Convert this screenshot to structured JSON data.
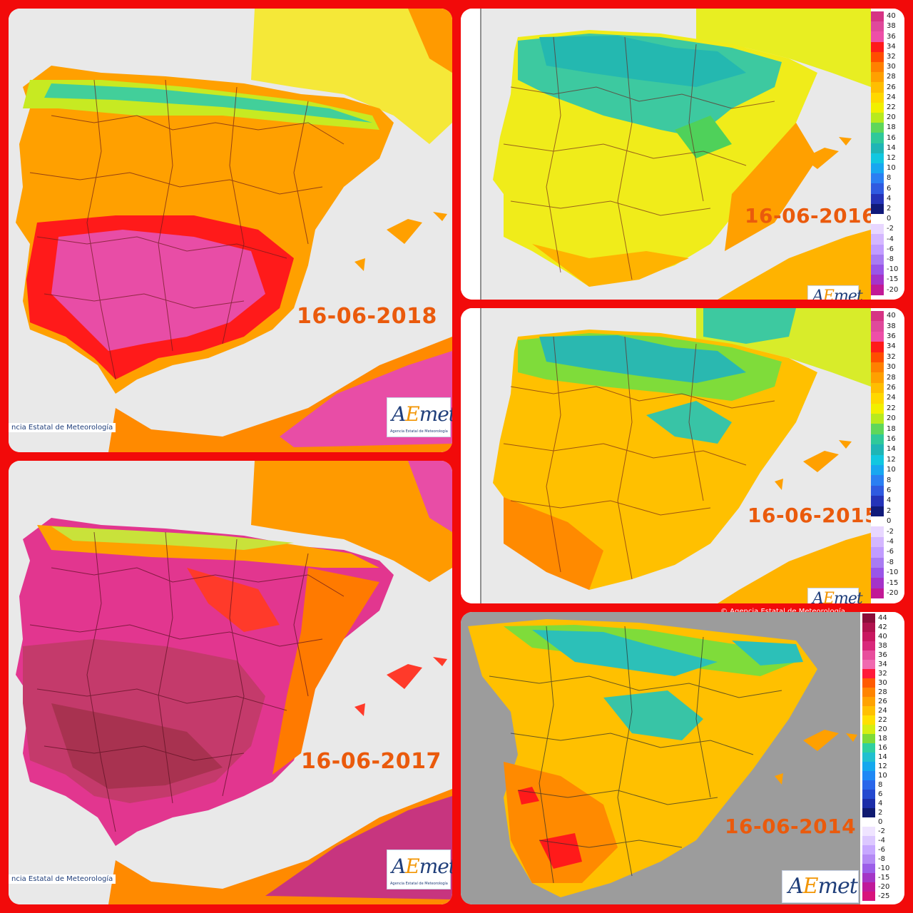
{
  "panels": [
    {
      "id": "p2018",
      "date": "16-06-2018",
      "credit": "ncia Estatal de Meteorología",
      "scheme": "hot"
    },
    {
      "id": "p2016",
      "date": "16-06-2016",
      "credit": "",
      "scheme": "cool"
    },
    {
      "id": "p2015",
      "date": "16-06-2015",
      "credit": "",
      "scheme": "mild"
    },
    {
      "id": "p2017",
      "date": "16-06-2017",
      "credit": "ncia Estatal de Meteorología",
      "scheme": "extreme"
    },
    {
      "id": "p2014",
      "date": "16-06-2014",
      "credit": "© Agencia Estatal de Meteorología",
      "scheme": "grey"
    }
  ],
  "logo": {
    "wordmark_a": "A",
    "wordmark_e": "E",
    "wordmark_rest": "met",
    "subtitle": "Agencia Estatal de Meteorología"
  },
  "legend_a": {
    "ticks": [
      "40",
      "38",
      "36",
      "34",
      "32",
      "30",
      "28",
      "26",
      "24",
      "22",
      "20",
      "18",
      "16",
      "14",
      "12",
      "10",
      "8",
      "6",
      "4",
      "2",
      "0",
      "-2",
      "-4",
      "-6",
      "-8",
      "-10",
      "-15",
      "-20"
    ],
    "colors": [
      "#d63384",
      "#e0499b",
      "#ee4fa8",
      "#ff1a1a",
      "#ff4d00",
      "#ff8000",
      "#ffa000",
      "#ffbe00",
      "#ffd800",
      "#f2ef00",
      "#b8ea1e",
      "#5fd75a",
      "#2fc99a",
      "#1fb5b5",
      "#12c7e0",
      "#18a7f0",
      "#2a7ff2",
      "#2f5ae0",
      "#2433b8",
      "#101a7a",
      "#ffffff",
      "#e8d7ff",
      "#d4b7ff",
      "#c19cff",
      "#a97bf2",
      "#9a55e8",
      "#a533c9",
      "#c21a96"
    ]
  },
  "legend_b": {
    "ticks": [
      "44",
      "42",
      "40",
      "38",
      "36",
      "34",
      "32",
      "30",
      "28",
      "26",
      "24",
      "22",
      "20",
      "18",
      "16",
      "14",
      "12",
      "10",
      "8",
      "6",
      "4",
      "2",
      "0",
      "-2",
      "-4",
      "-6",
      "-8",
      "-10",
      "-15",
      "-20",
      "-25"
    ],
    "colors": [
      "#8a0e3a",
      "#b0124d",
      "#c91760",
      "#d9277a",
      "#e84d9c",
      "#f06ab0",
      "#ff1a3a",
      "#ff5a00",
      "#ff8400",
      "#ffa200",
      "#ffc000",
      "#ffe000",
      "#d6ee12",
      "#7edb38",
      "#2fd0a0",
      "#20c0d0",
      "#14a8ee",
      "#1e88f5",
      "#2a66ea",
      "#2448cf",
      "#1c2da8",
      "#101a70",
      "#ffffff",
      "#efe4ff",
      "#dcc8ff",
      "#c7a8ff",
      "#b48af5",
      "#9c5ee8",
      "#a436c6",
      "#c0189a",
      "#d8127c"
    ]
  }
}
